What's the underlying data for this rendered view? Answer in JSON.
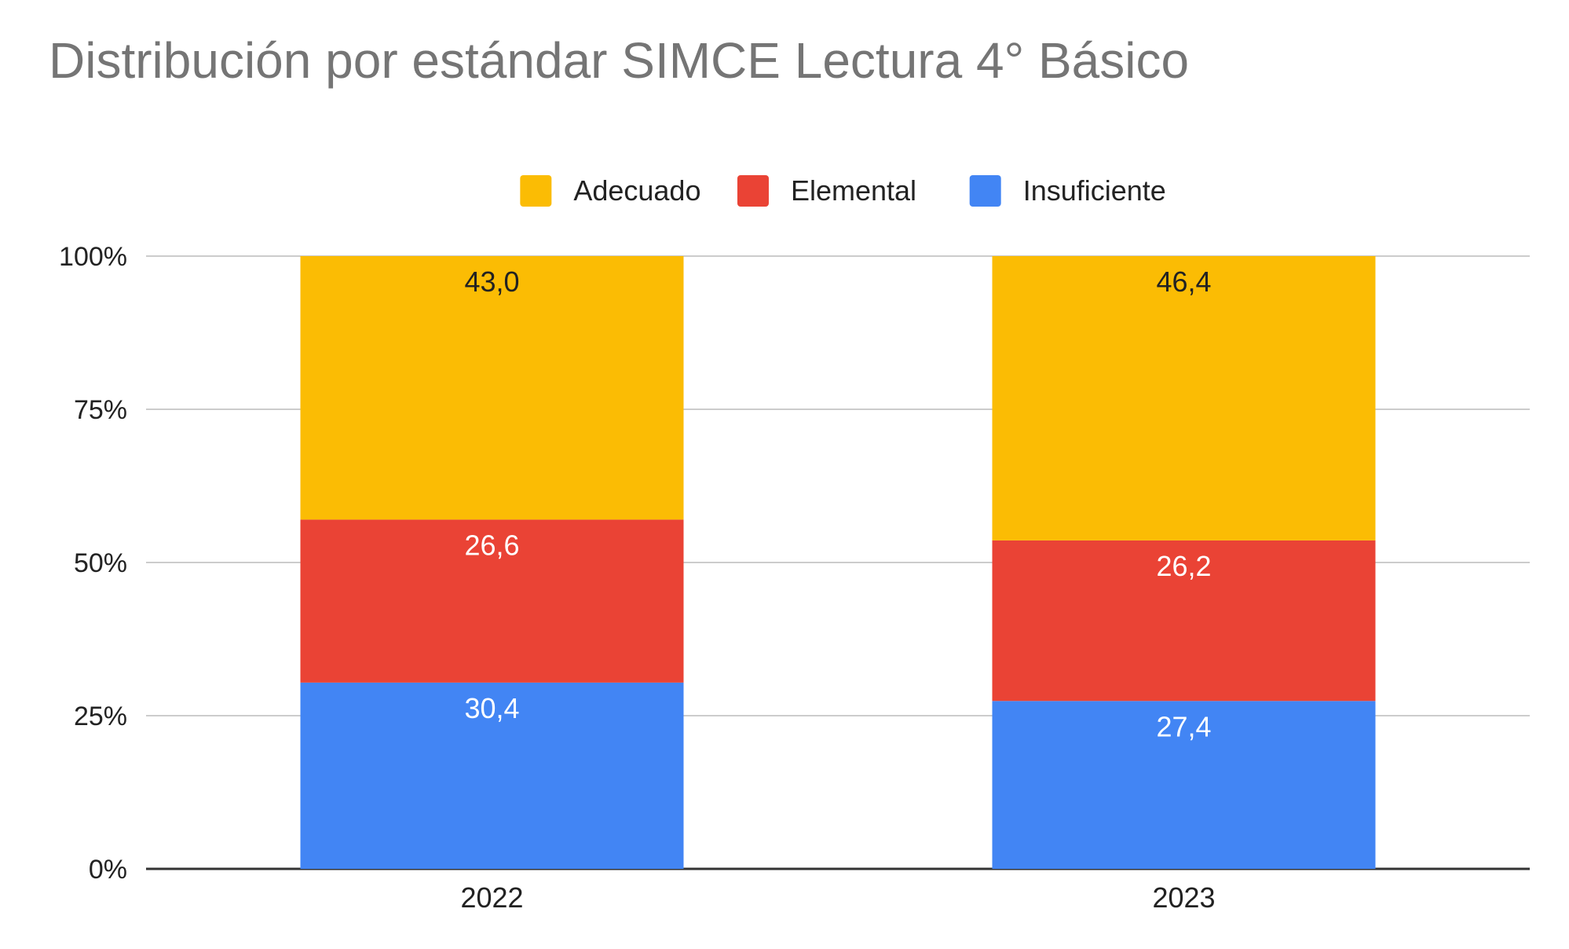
{
  "chart_data": {
    "type": "bar",
    "stacked": true,
    "normalized_percent": true,
    "title": "Distribución por estándar SIMCE Lectura 4° Básico",
    "xlabel": "",
    "ylabel": "",
    "categories": [
      "2022",
      "2023"
    ],
    "series": [
      {
        "name": "Insuficiente",
        "values": [
          30.4,
          27.4
        ],
        "labels": [
          "30,4",
          "27,4"
        ],
        "color": "#4285F4",
        "label_color": "#ffffff"
      },
      {
        "name": "Elemental",
        "values": [
          26.6,
          26.2
        ],
        "labels": [
          "26,6",
          "26,2"
        ],
        "color": "#EA4335",
        "label_color": "#ffffff"
      },
      {
        "name": "Adecuado",
        "values": [
          43.0,
          46.4
        ],
        "labels": [
          "43,0",
          "46,4"
        ],
        "color": "#FBBC04",
        "label_color": "#222222"
      }
    ],
    "legend_order": [
      "Adecuado",
      "Elemental",
      "Insuficiente"
    ],
    "legend_position": "top",
    "yticks": [
      "0%",
      "25%",
      "50%",
      "75%",
      "100%"
    ],
    "ylim": [
      0,
      100
    ],
    "grid": true
  }
}
